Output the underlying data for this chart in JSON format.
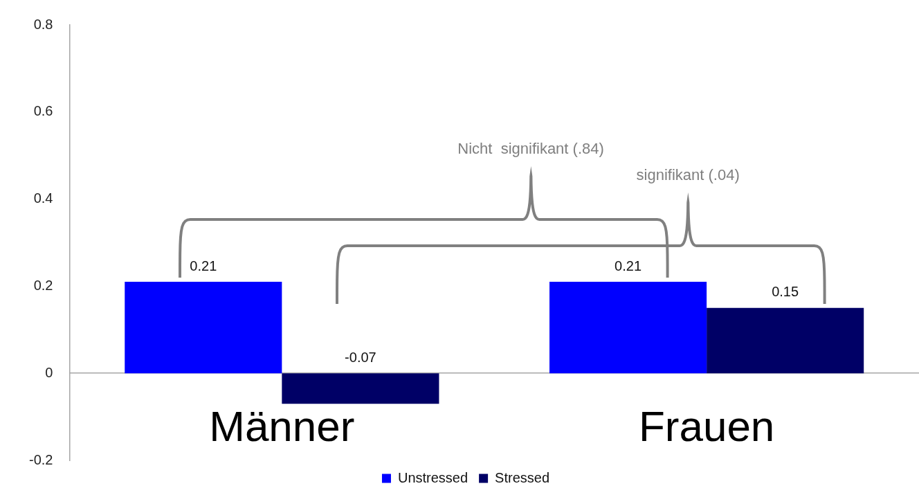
{
  "chart_data": {
    "type": "bar",
    "categories": [
      "Männer",
      "Frauen"
    ],
    "series": [
      {
        "name": "Unstressed",
        "color": "#0000ff",
        "values": [
          0.21,
          0.21
        ]
      },
      {
        "name": "Stressed",
        "color": "#000066",
        "values": [
          -0.07,
          0.15
        ]
      }
    ],
    "ylim": [
      -0.2,
      0.8
    ],
    "yticks": [
      -0.2,
      0,
      0.2,
      0.4,
      0.6,
      0.8
    ],
    "data_labels": true,
    "legend": "bottom",
    "annotations": [
      "Nicht  signifikant (.84)",
      "signifikant (.04)"
    ]
  }
}
